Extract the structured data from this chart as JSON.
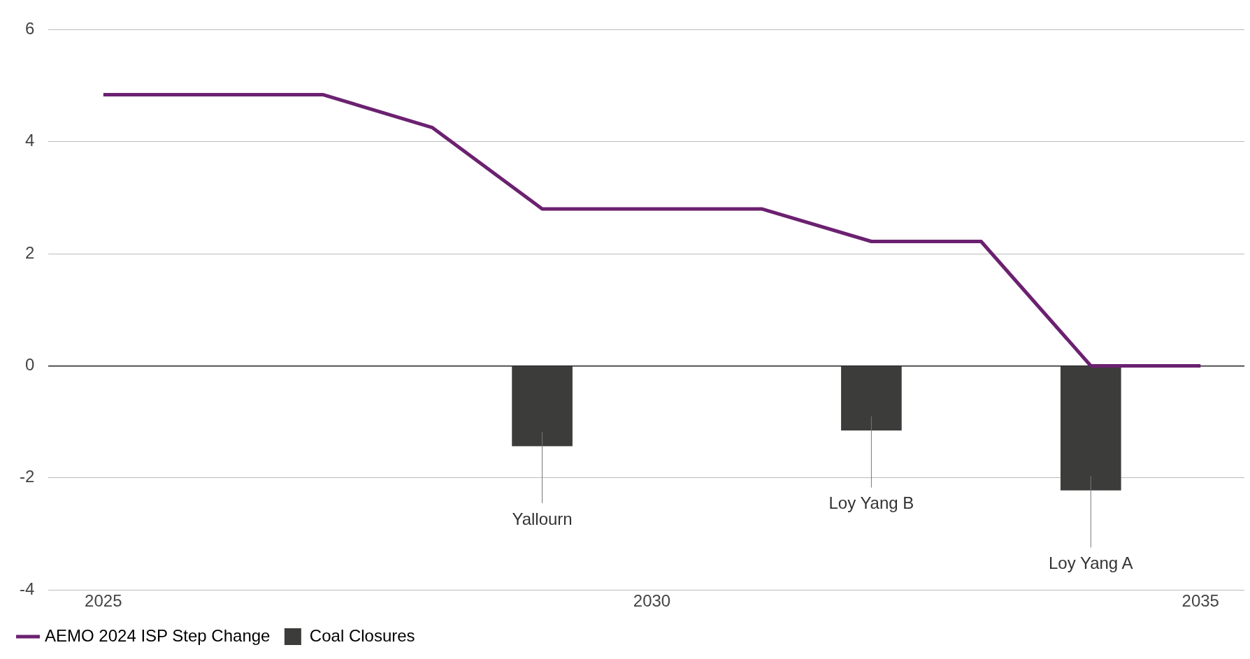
{
  "chart_data": {
    "type": "line",
    "x": [
      2025,
      2027,
      2028,
      2029,
      2031,
      2032,
      2033,
      2034,
      2035
    ],
    "series": [
      {
        "name": "AEMO 2024 ISP Step Change",
        "color": "#6b2170",
        "values": [
          4.84,
          4.84,
          4.25,
          2.8,
          2.8,
          2.22,
          2.22,
          0,
          0
        ]
      },
      {
        "name": "Coal Closures",
        "type": "bar",
        "color": "#3c3c3b",
        "x": [
          2029,
          2032,
          2034
        ],
        "values": [
          -1.43,
          -1.15,
          -2.22
        ]
      }
    ],
    "xlim": [
      2024.5,
      2035.4
    ],
    "xticks": [
      2025,
      2030,
      2035
    ],
    "ylim": [
      -4,
      6
    ],
    "yticks": [
      -4,
      -2,
      0,
      2,
      4,
      6
    ],
    "grid": "y",
    "legend": "bottom left",
    "marker": "none",
    "line_style": "solid",
    "annotations": [
      "Yallourn",
      "Loy Yang B",
      "Loy Yang A"
    ]
  }
}
